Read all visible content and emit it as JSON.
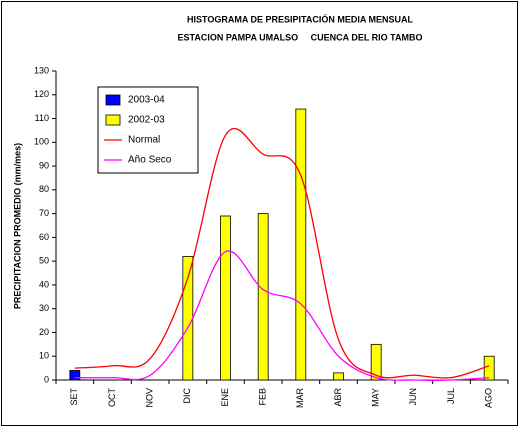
{
  "chart_data": {
    "type": "bar",
    "title": "HISTOGRAMA DE PRESIPITACIÓN MEDIA MENSUAL",
    "subtitle": "ESTACION PAMPA UMALSO     CUENCA DEL RIO TAMBO",
    "y_label": "PRECIPITACION PROMEDIO (mm/mes)",
    "categories": [
      "SET",
      "OCT",
      "NOV",
      "DIC",
      "ENE",
      "FEB",
      "MAR",
      "ABR",
      "MAY",
      "JUN",
      "JUL",
      "AGO"
    ],
    "series": [
      {
        "name": "2003-04",
        "type": "bar",
        "color": "#0000ff",
        "values": [
          4,
          null,
          null,
          null,
          null,
          null,
          null,
          null,
          null,
          null,
          null,
          null
        ]
      },
      {
        "name": "2002-03",
        "type": "bar",
        "color": "#ffff00",
        "values": [
          null,
          null,
          null,
          52,
          69,
          70,
          114,
          3,
          15,
          null,
          null,
          10
        ]
      },
      {
        "name": "Normal",
        "type": "line",
        "color": "#ff0000",
        "values": [
          5,
          6,
          9,
          43,
          103,
          95,
          86,
          17,
          2,
          2,
          1,
          6
        ]
      },
      {
        "name": "Año Seco",
        "type": "line",
        "color": "#ff00ff",
        "values": [
          1,
          1,
          2,
          22,
          54,
          38,
          32,
          10,
          1,
          0,
          0,
          1
        ]
      }
    ],
    "ylim": [
      0,
      130
    ],
    "yticks": [
      0,
      10,
      20,
      30,
      40,
      50,
      60,
      70,
      80,
      90,
      100,
      110,
      120,
      130
    ],
    "grid": false,
    "legend": "top-left"
  }
}
